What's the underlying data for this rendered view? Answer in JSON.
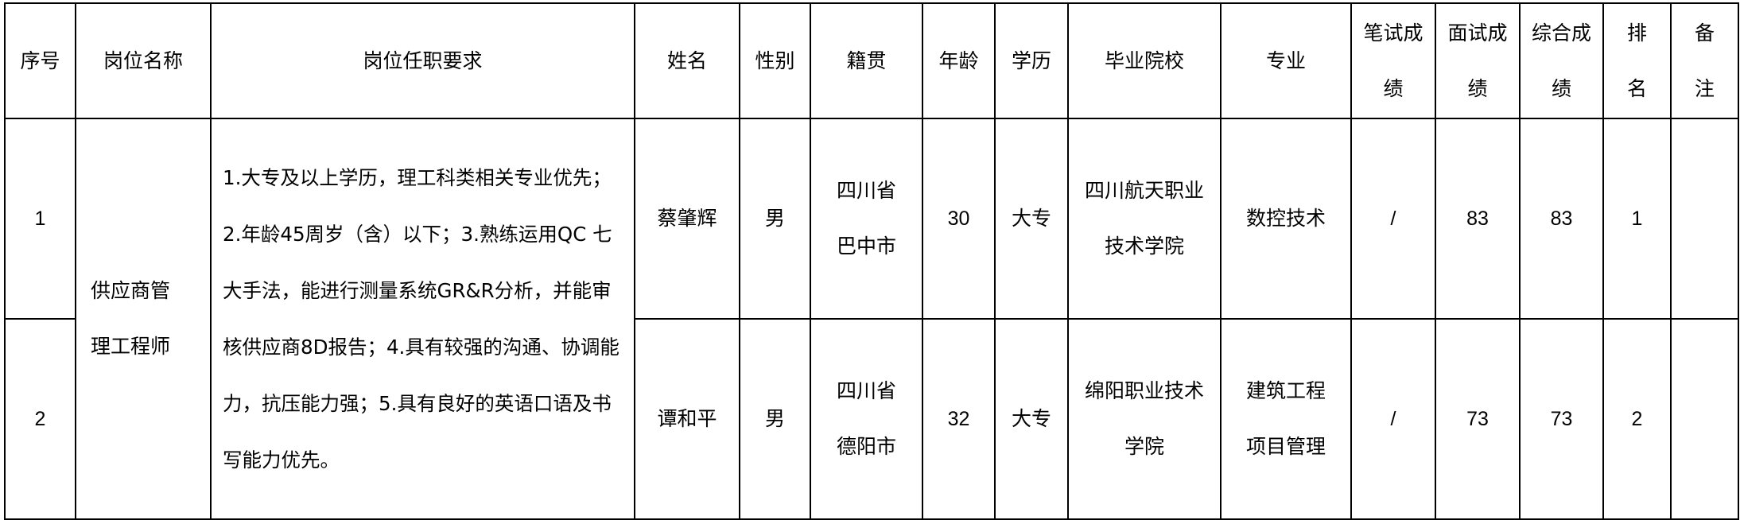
{
  "headers": [
    "序号",
    "岗位名称",
    "岗位任职要求",
    "姓名",
    "性别",
    "籍贯",
    "年龄",
    "学历",
    "毕业院校",
    "专业",
    "笔试成绩",
    "面试成绩",
    "综合成绩",
    "排名",
    "备注"
  ],
  "position": {
    "name": "供应商管理工程师",
    "requirements": "1.大专及以上学历，理工科类相关专业优先；2.年龄45周岁（含）以下；3.熟练运用QC 七大手法，能进行测量系统GR&R分析，并能审核供应商8D报告；4.具有较强的沟通、协调能力，抗压能力强；5.具有良好的英语口语及书写能力优先。"
  },
  "rows": [
    {
      "seq": "1",
      "name": "蔡肇辉",
      "gender": "男",
      "origin": "四川省巴中市",
      "age": "30",
      "education": "大专",
      "school": "四川航天职业技术学院",
      "major": "数控技术",
      "written": "/",
      "interview": "83",
      "total": "83",
      "rank": "1",
      "note": ""
    },
    {
      "seq": "2",
      "name": "谭和平",
      "gender": "男",
      "origin": "四川省德阳市",
      "age": "32",
      "education": "大专",
      "school": "绵阳职业技术学院",
      "major": "建筑工程项目管理",
      "written": "/",
      "interview": "73",
      "total": "73",
      "rank": "2",
      "note": ""
    }
  ]
}
